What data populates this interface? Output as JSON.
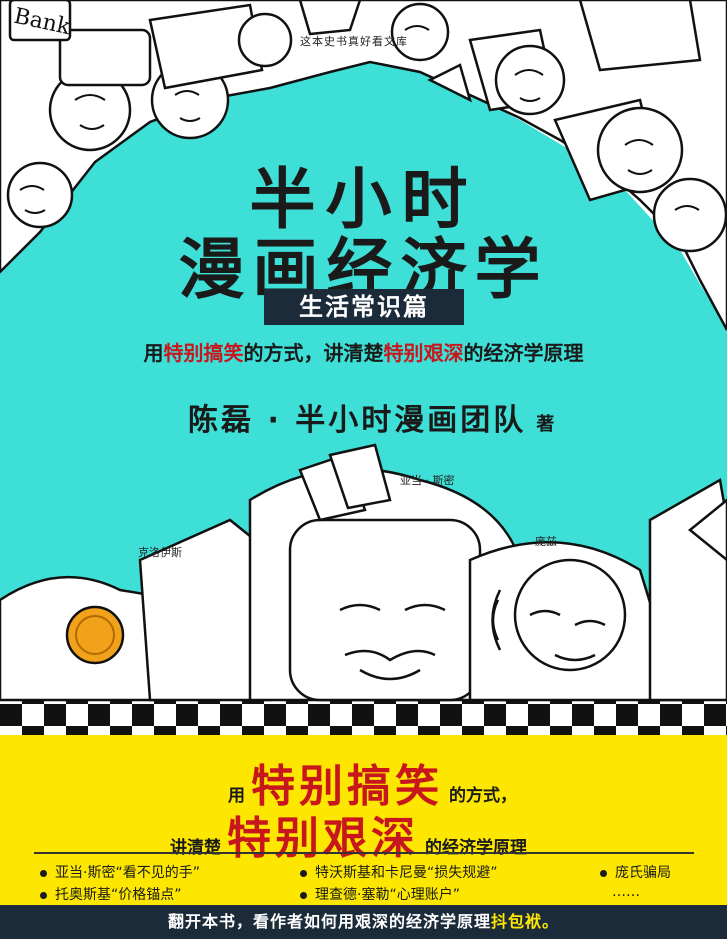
{
  "watermark": "这本史书真好看文库",
  "title": {
    "line1": "半小时",
    "line2": "漫画经济学"
  },
  "edition": "生活常识篇",
  "tagline": {
    "p1": "用",
    "r1": "特别搞笑",
    "p2": "的方式，讲清楚",
    "r2": "特别艰深",
    "p3": "的经济学原理"
  },
  "author": {
    "name": "陈磊 · 半小时漫画团队",
    "suffix": "著"
  },
  "illustration": {
    "sign_text": "Bank",
    "captions": {
      "smith": "亚当 · 斯密",
      "croesus": "克洛伊斯",
      "ponzi": "庞兹"
    }
  },
  "banner": {
    "l1_pre": "用",
    "l1_big": "特别搞笑",
    "l1_post": "的方式，",
    "l2_pre": "讲清楚",
    "l2_big": "特别艰深",
    "l2_post": "的经济学原理"
  },
  "bullets": [
    "亚当·斯密“看不见的手”",
    "特沃斯基和卡尼曼“损失规避”",
    "庞氏骗局",
    "托奥斯基“价格锚点”",
    "理查德·塞勒“心理账户”",
    "……"
  ],
  "footer": {
    "main": "翻开本书，看作者如何用艰深的经济学原理",
    "highlight": "抖包袱。"
  },
  "colors": {
    "cyan": "#3ddfd6",
    "yellow": "#fde700",
    "navy": "#1c2b3a",
    "red": "#c8161d"
  }
}
